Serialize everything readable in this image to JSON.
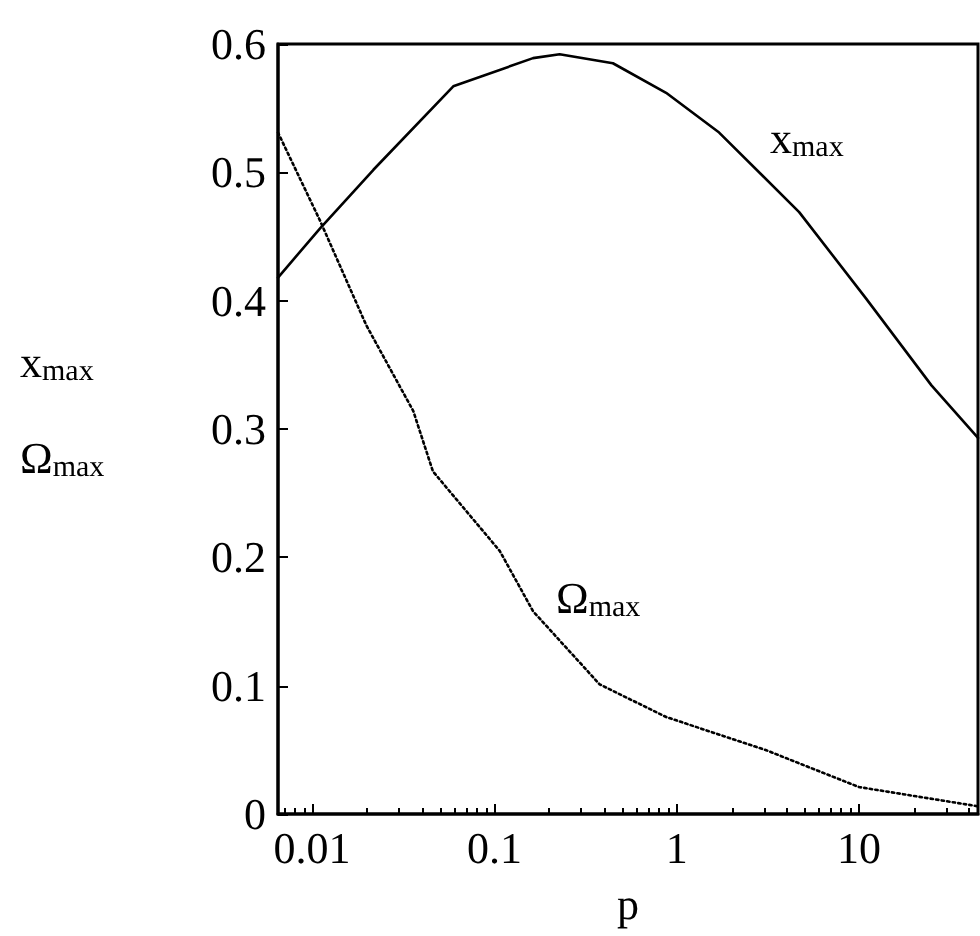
{
  "chart_data": {
    "type": "line",
    "xlabel": "p",
    "ylabel": "x$_{max}$\nΩ$_{max}$",
    "log": "x",
    "xlim": [
      0.0065,
      45
    ],
    "xticks": [
      0.01,
      0.1,
      1,
      10
    ],
    "ylim": [
      0,
      0.6
    ],
    "yticks": [
      0,
      0.1,
      0.2,
      0.3,
      0.4,
      0.5,
      0.6
    ],
    "grid": false,
    "legend": false,
    "marker": "none",
    "series": [
      {
        "name": "x$_{max}$",
        "color": "#000000",
        "line_style": "solid",
        "x": [
          0.0065,
          0.011,
          0.0217,
          0.0595,
          0.163,
          0.228,
          0.447,
          0.875,
          1.71,
          4.7,
          10.9,
          25,
          45
        ],
        "values": [
          0.418,
          0.456,
          0.502,
          0.567,
          0.589,
          0.592,
          0.585,
          0.562,
          0.531,
          0.469,
          0.402,
          0.334,
          0.293
        ]
      },
      {
        "name": "Ω$_{max}$",
        "color": "#000000",
        "line_style": "dotted",
        "x": [
          0.0065,
          0.011,
          0.0198,
          0.0359,
          0.046,
          0.107,
          0.163,
          0.378,
          0.875,
          3.1,
          10,
          45
        ],
        "values": [
          0.531,
          0.463,
          0.381,
          0.314,
          0.267,
          0.205,
          0.158,
          0.101,
          0.0756,
          0.0497,
          0.021,
          0.006
        ]
      }
    ]
  }
}
